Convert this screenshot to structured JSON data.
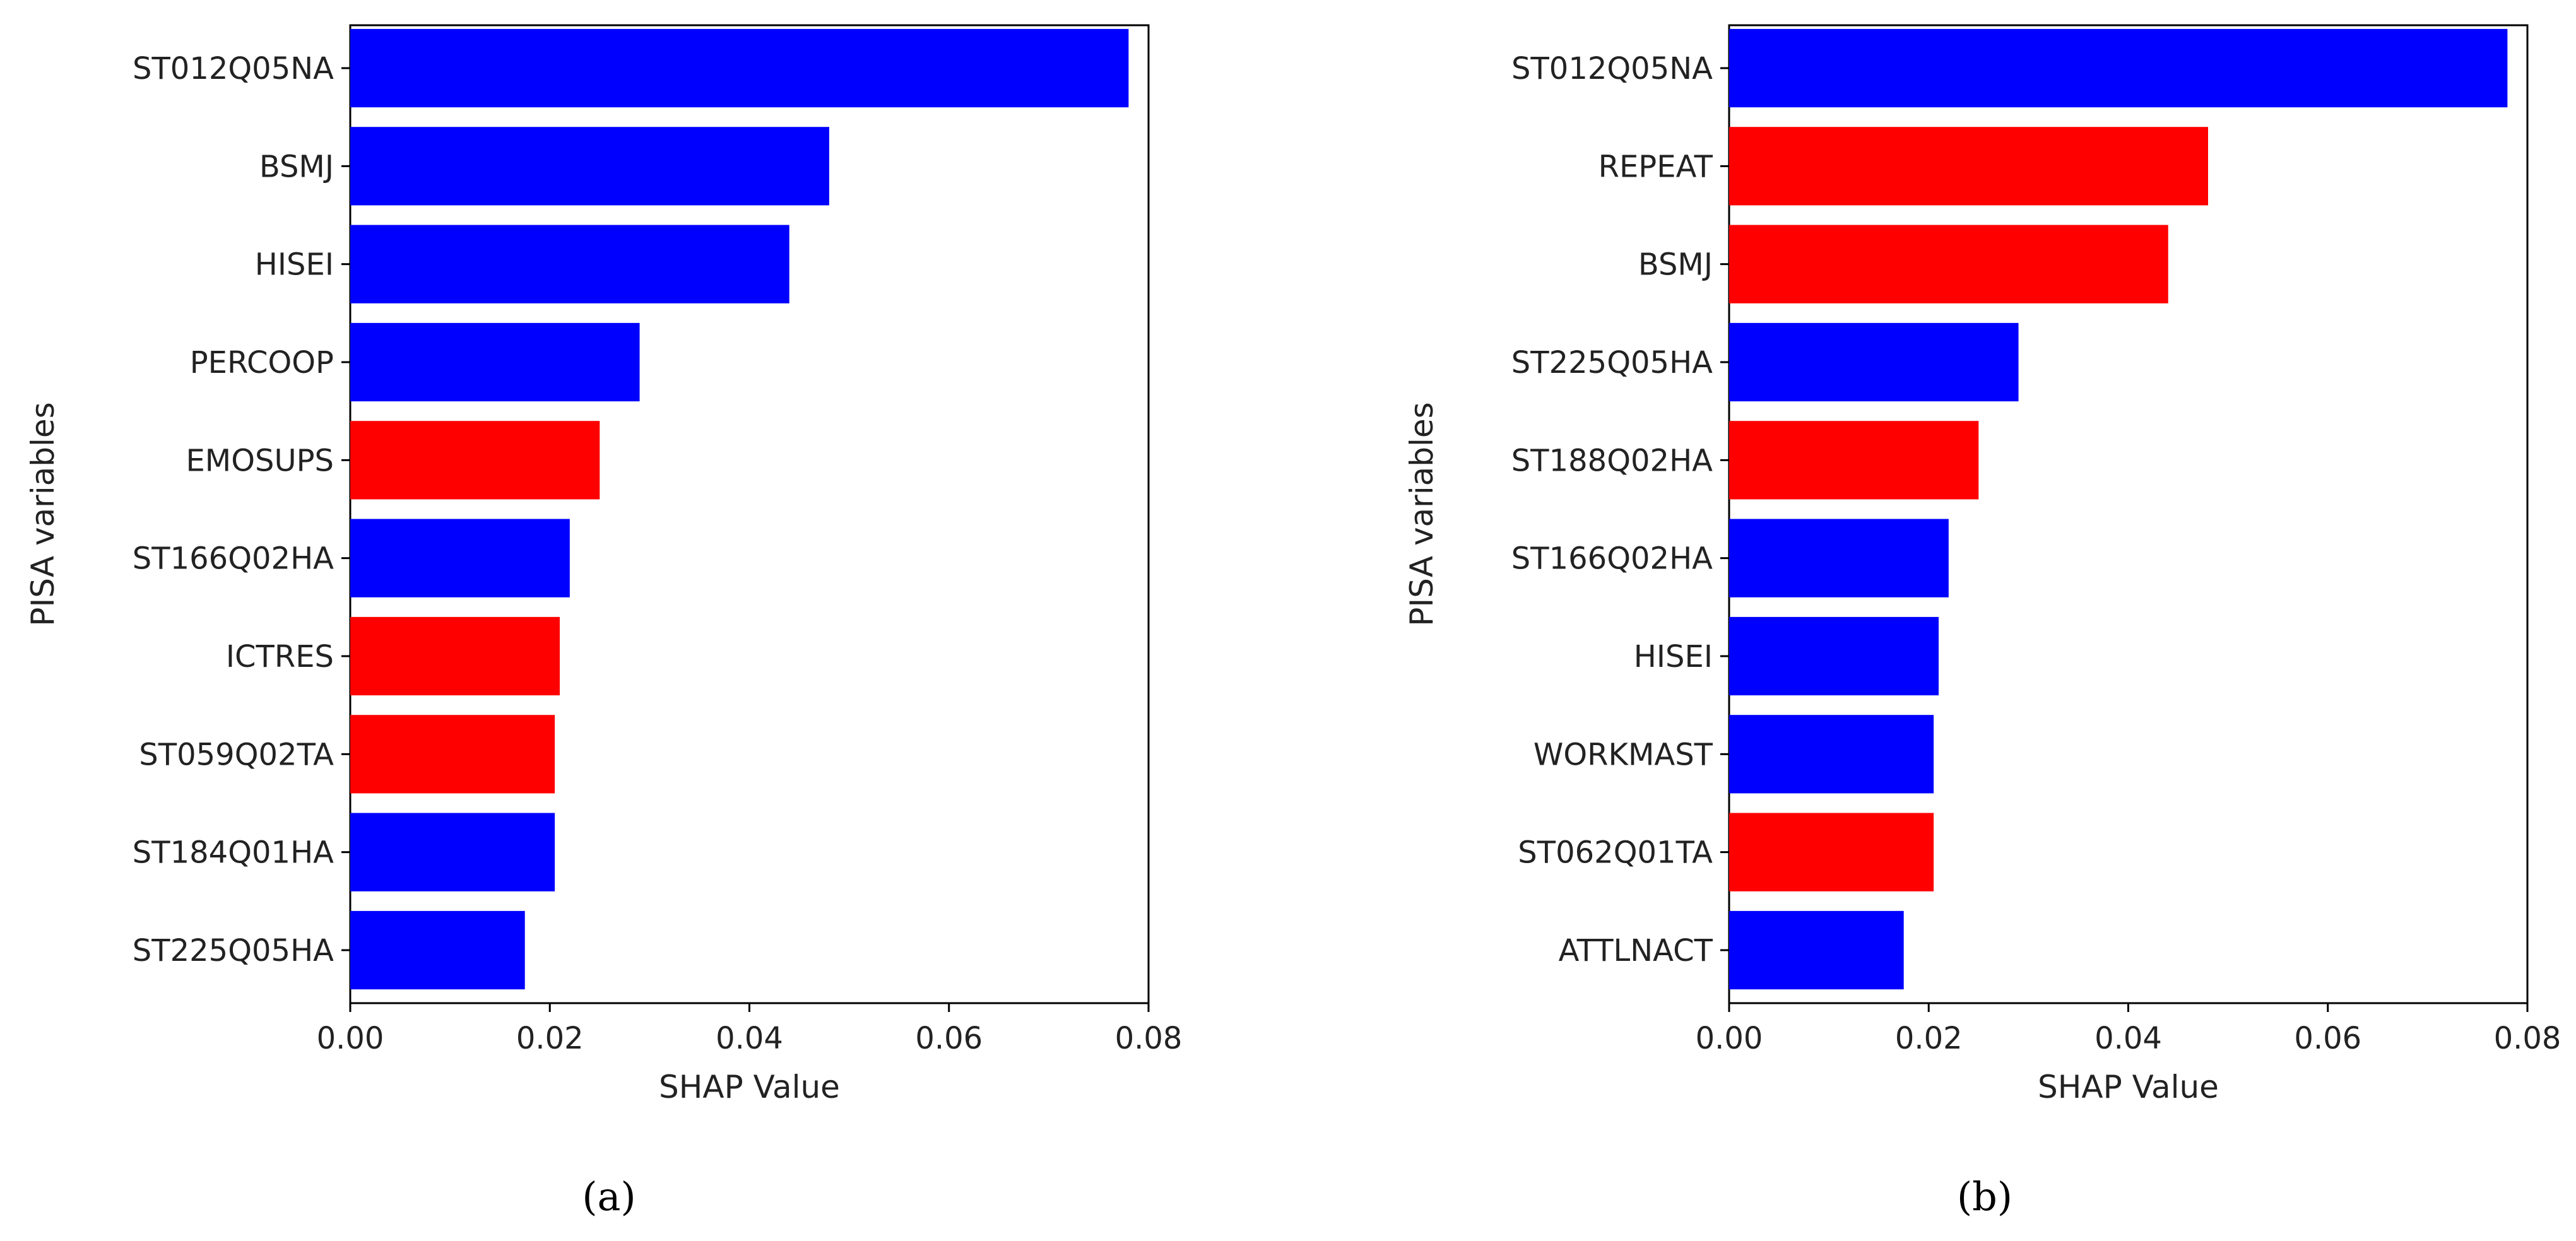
{
  "figure": {
    "caption_a": "(a)",
    "caption_b": "(b)"
  },
  "chart_data": [
    {
      "type": "bar",
      "orientation": "horizontal",
      "panel": "a",
      "title": "",
      "xlabel": "SHAP Value",
      "ylabel": "PISA variables",
      "xlim": [
        0,
        0.08
      ],
      "xticks": [
        "0.00",
        "0.02",
        "0.04",
        "0.06",
        "0.08"
      ],
      "xtick_values": [
        0,
        0.02,
        0.04,
        0.06,
        0.08
      ],
      "grid": false,
      "categories": [
        "ST012Q05NA",
        "BSMJ",
        "HISEI",
        "PERCOOP",
        "EMOSUPS",
        "ST166Q02HA",
        "ICTRES",
        "ST059Q02TA",
        "ST184Q01HA",
        "ST225Q05HA"
      ],
      "values": [
        0.078,
        0.048,
        0.044,
        0.029,
        0.025,
        0.022,
        0.021,
        0.0205,
        0.0205,
        0.0175
      ],
      "colors": [
        "#0000ff",
        "#0000ff",
        "#0000ff",
        "#0000ff",
        "#ff0000",
        "#0000ff",
        "#ff0000",
        "#ff0000",
        "#0000ff",
        "#0000ff"
      ]
    },
    {
      "type": "bar",
      "orientation": "horizontal",
      "panel": "b",
      "title": "",
      "xlabel": "SHAP Value",
      "ylabel": "PISA variables",
      "xlim": [
        0,
        0.08
      ],
      "xticks": [
        "0.00",
        "0.02",
        "0.04",
        "0.06",
        "0.08"
      ],
      "xtick_values": [
        0,
        0.02,
        0.04,
        0.06,
        0.08
      ],
      "grid": false,
      "categories": [
        "ST012Q05NA",
        "REPEAT",
        "BSMJ",
        "ST225Q05HA",
        "ST188Q02HA",
        "ST166Q02HA",
        "HISEI",
        "WORKMAST",
        "ST062Q01TA",
        "ATTLNACT"
      ],
      "values": [
        0.078,
        0.048,
        0.044,
        0.029,
        0.025,
        0.022,
        0.021,
        0.0205,
        0.0205,
        0.0175
      ],
      "colors": [
        "#0000ff",
        "#ff0000",
        "#ff0000",
        "#0000ff",
        "#ff0000",
        "#0000ff",
        "#0000ff",
        "#0000ff",
        "#ff0000",
        "#0000ff"
      ]
    }
  ]
}
